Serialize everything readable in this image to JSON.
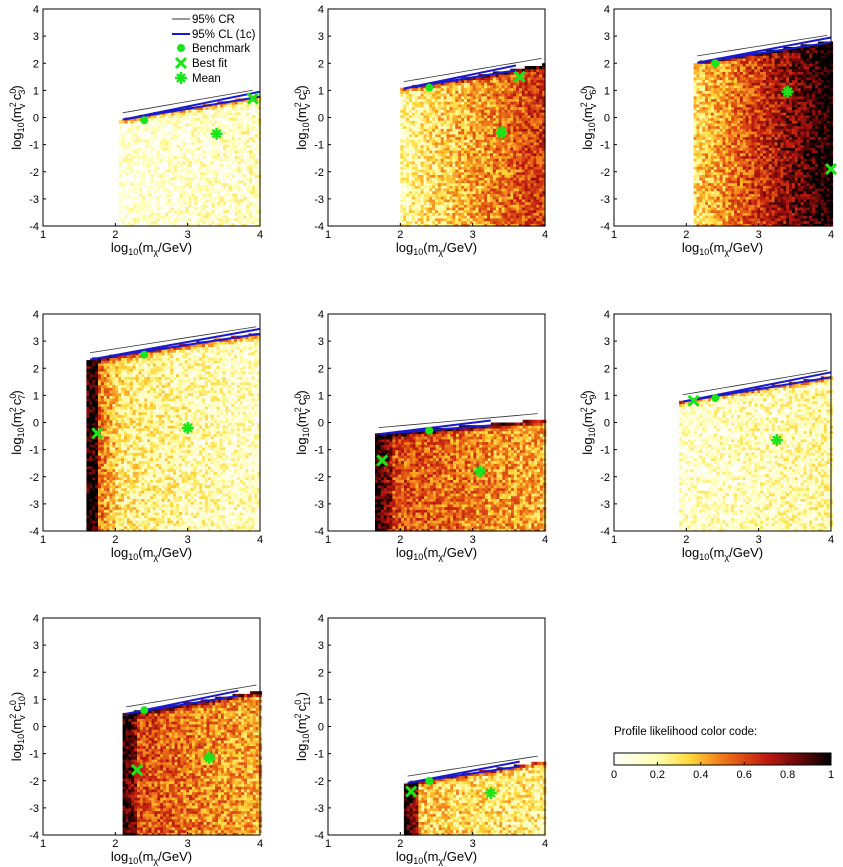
{
  "chart_data": [
    {
      "type": "heatmap",
      "panel": "c3",
      "xlabel": "log10(mχ/GeV)",
      "ylabel": "log10(m_v^2 c_3^0)",
      "xlim": [
        1,
        4
      ],
      "ylim": [
        -4,
        4
      ],
      "xticks": [
        "1",
        "2",
        "3",
        "4"
      ],
      "yticks": [
        "-4",
        "-3",
        "-2",
        "-1",
        "0",
        "1",
        "2",
        "3",
        "4"
      ],
      "benchmark": {
        "x": 2.4,
        "y": -0.1
      },
      "best_fit": {
        "x": 3.9,
        "y": 0.7
      },
      "mean": {
        "x": 3.4,
        "y": -0.6
      }
    },
    {
      "type": "heatmap",
      "panel": "c5",
      "xlabel": "log10(mχ/GeV)",
      "ylabel": "log10(m_v^2 c_5^0)",
      "xlim": [
        1,
        4
      ],
      "ylim": [
        -4,
        4
      ],
      "xticks": [
        "1",
        "2",
        "3",
        "4"
      ],
      "yticks": [
        "-4",
        "-3",
        "-2",
        "-1",
        "0",
        "1",
        "2",
        "3",
        "4"
      ],
      "benchmark": {
        "x": 2.4,
        "y": 1.1
      },
      "best_fit": {
        "x": 3.65,
        "y": 1.5
      },
      "mean": {
        "x": 3.4,
        "y": -0.55
      }
    },
    {
      "type": "heatmap",
      "panel": "c6",
      "xlabel": "log10(mχ/GeV)",
      "ylabel": "log10(m_v^2 c_6^0)",
      "xlim": [
        1,
        4
      ],
      "ylim": [
        -4,
        4
      ],
      "xticks": [
        "1",
        "2",
        "3",
        "4"
      ],
      "yticks": [
        "-4",
        "-3",
        "-2",
        "-1",
        "0",
        "1",
        "2",
        "3",
        "4"
      ],
      "benchmark": {
        "x": 2.4,
        "y": 2.0
      },
      "best_fit": {
        "x": 4.0,
        "y": -1.9
      },
      "mean": {
        "x": 3.4,
        "y": 0.95
      }
    },
    {
      "type": "heatmap",
      "panel": "c7",
      "xlabel": "log10(mχ/GeV)",
      "ylabel": "log10(m_v^2 c_7^0)",
      "xlim": [
        1,
        4
      ],
      "ylim": [
        -4,
        4
      ],
      "xticks": [
        "1",
        "2",
        "3",
        "4"
      ],
      "yticks": [
        "-4",
        "-3",
        "-2",
        "-1",
        "0",
        "1",
        "2",
        "3",
        "4"
      ],
      "benchmark": {
        "x": 2.4,
        "y": 2.5
      },
      "best_fit": {
        "x": 1.75,
        "y": -0.4
      },
      "mean": {
        "x": 3.0,
        "y": -0.2
      }
    },
    {
      "type": "heatmap",
      "panel": "c8",
      "xlabel": "log10(mχ/GeV)",
      "ylabel": "log10(m_v^2 c_8^0)",
      "xlim": [
        1,
        4
      ],
      "ylim": [
        -4,
        4
      ],
      "xticks": [
        "1",
        "2",
        "3",
        "4"
      ],
      "yticks": [
        "-4",
        "-3",
        "-2",
        "-1",
        "0",
        "1",
        "2",
        "3",
        "4"
      ],
      "benchmark": {
        "x": 2.4,
        "y": -0.3
      },
      "best_fit": {
        "x": 1.75,
        "y": -1.4
      },
      "mean": {
        "x": 3.1,
        "y": -1.8
      }
    },
    {
      "type": "heatmap",
      "panel": "c9",
      "xlabel": "log10(mχ/GeV)",
      "ylabel": "log10(m_v^2 c_9^0)",
      "xlim": [
        1,
        4
      ],
      "ylim": [
        -4,
        4
      ],
      "xticks": [
        "1",
        "2",
        "3",
        "4"
      ],
      "yticks": [
        "-4",
        "-3",
        "-2",
        "-1",
        "0",
        "1",
        "2",
        "3",
        "4"
      ],
      "benchmark": {
        "x": 2.4,
        "y": 0.9
      },
      "best_fit": {
        "x": 2.1,
        "y": 0.8
      },
      "mean": {
        "x": 3.25,
        "y": -0.65
      }
    },
    {
      "type": "heatmap",
      "panel": "c10",
      "xlabel": "log10(mχ/GeV)",
      "ylabel": "log10(m_v^2 c_10^0)",
      "xlim": [
        1,
        4
      ],
      "ylim": [
        -4,
        4
      ],
      "xticks": [
        "1",
        "2",
        "3",
        "4"
      ],
      "yticks": [
        "-4",
        "-3",
        "-2",
        "-1",
        "0",
        "1",
        "2",
        "3",
        "4"
      ],
      "benchmark": {
        "x": 2.4,
        "y": 0.6
      },
      "best_fit": {
        "x": 2.3,
        "y": -1.6
      },
      "mean": {
        "x": 3.3,
        "y": -1.15
      }
    },
    {
      "type": "heatmap",
      "panel": "c11",
      "xlabel": "log10(mχ/GeV)",
      "ylabel": "log10(m_v^2 c_11^0)",
      "xlim": [
        1,
        4
      ],
      "ylim": [
        -4,
        4
      ],
      "xticks": [
        "1",
        "2",
        "3",
        "4"
      ],
      "yticks": [
        "-4",
        "-3",
        "-2",
        "-1",
        "0",
        "1",
        "2",
        "3",
        "4"
      ],
      "benchmark": {
        "x": 2.4,
        "y": -2.0
      },
      "best_fit": {
        "x": 2.15,
        "y": -2.4
      },
      "mean": {
        "x": 3.25,
        "y": -2.45
      }
    }
  ],
  "legend": {
    "entries": [
      "95% CR",
      "95% CL (1c)",
      "Benchmark",
      "Best fit",
      "Mean"
    ]
  },
  "colorbar": {
    "title": "Profile likelihood color code:",
    "ticks": [
      "0",
      "0.2",
      "0.4",
      "0.6",
      "0.8",
      "1"
    ],
    "range": [
      0,
      1
    ]
  },
  "colors": {
    "marker": "#19e619",
    "cl_line": "#1a1acc",
    "cr_line": "#333333"
  }
}
